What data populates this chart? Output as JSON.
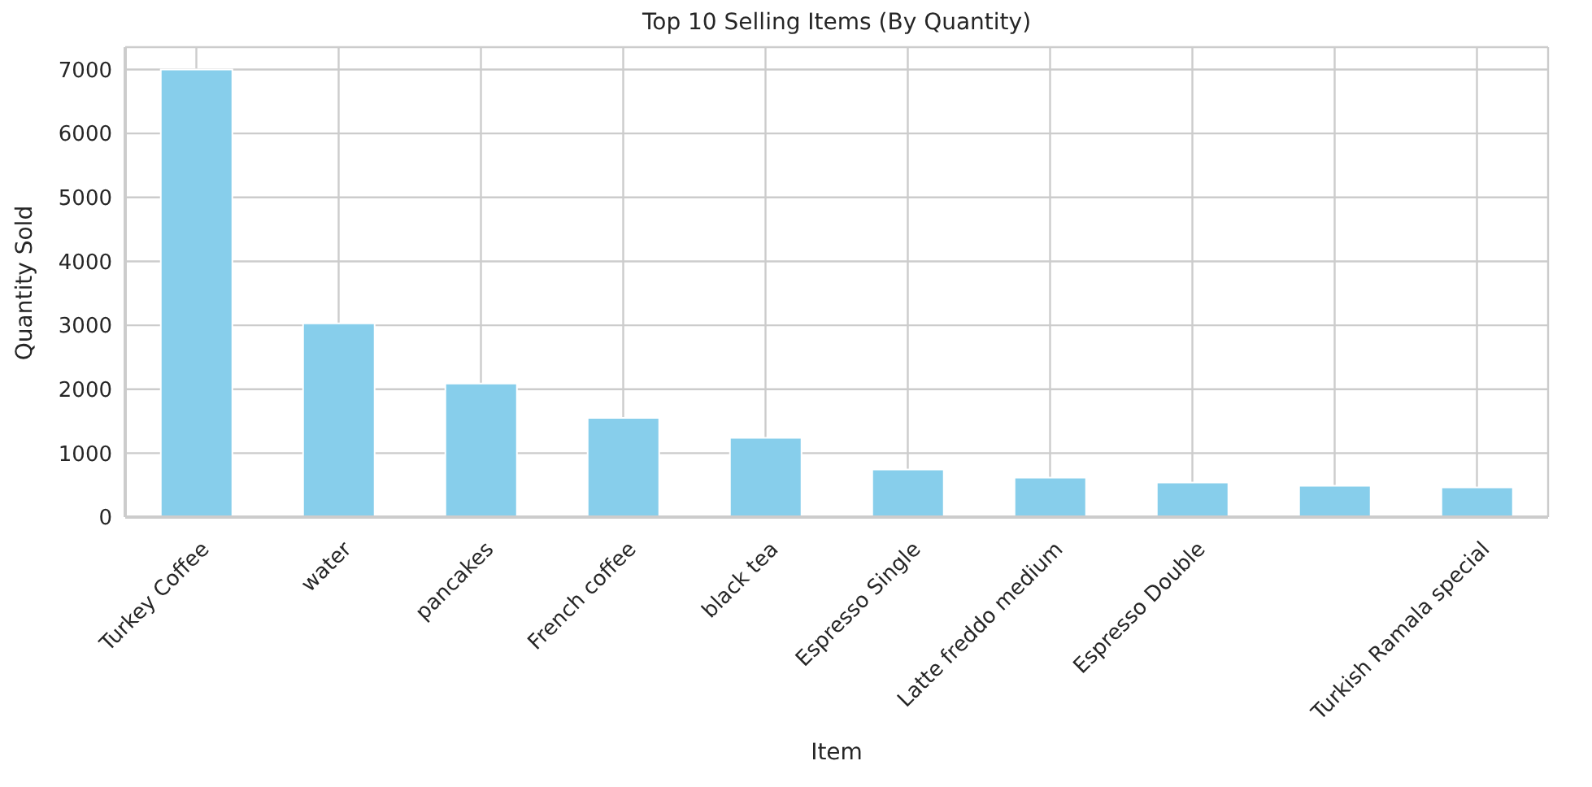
{
  "chart_data": {
    "type": "bar",
    "title": "Top 10 Selling Items (By Quantity)",
    "xlabel": "Item",
    "ylabel": "Quantity Sold",
    "categories": [
      "Turkey Coffee",
      "water",
      "pancakes",
      "French coffee",
      "black tea",
      "Espresso Single",
      "Latte freddo medium",
      "Espresso Double",
      null,
      "Turkish Ramala special"
    ],
    "values": [
      7000,
      3030,
      2090,
      1550,
      1240,
      745,
      617,
      540,
      488,
      463
    ],
    "color": "#87ceeb",
    "ylim": [
      0,
      7350
    ],
    "yticks": [
      0,
      1000,
      2000,
      3000,
      4000,
      5000,
      6000,
      7000
    ],
    "grid": true
  }
}
